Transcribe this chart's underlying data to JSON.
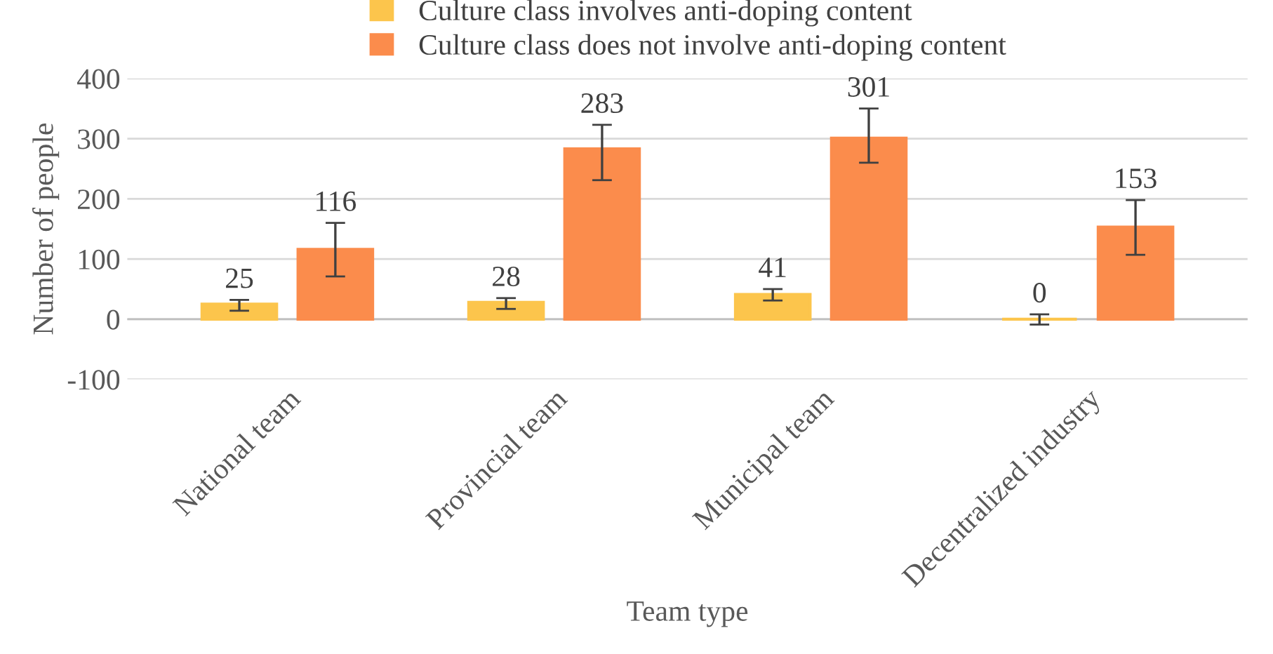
{
  "chart_data": {
    "type": "bar",
    "xlabel": "Team type",
    "ylabel": "Number of people",
    "categories": [
      "National team",
      "Provincial team",
      "Municipal team",
      "Decentralized industry"
    ],
    "series": [
      {
        "name": "Culture class involves anti-doping content",
        "color": "#fcc54c",
        "values": [
          25,
          28,
          41,
          0
        ],
        "errors": [
          [
            14,
            32
          ],
          [
            17,
            35
          ],
          [
            31,
            50
          ],
          [
            -9,
            8
          ]
        ]
      },
      {
        "name": "Culture class does not involve anti-doping content",
        "color": "#fb8c4c",
        "values": [
          116,
          283,
          301,
          153
        ],
        "errors": [
          [
            71,
            160
          ],
          [
            231,
            323
          ],
          [
            260,
            350
          ],
          [
            107,
            198
          ]
        ]
      }
    ],
    "ylim": [
      -100,
      400
    ],
    "yticks": [
      -100,
      0,
      100,
      200,
      300,
      400
    ],
    "grid": "y",
    "legend": "top",
    "data_labels": true
  }
}
